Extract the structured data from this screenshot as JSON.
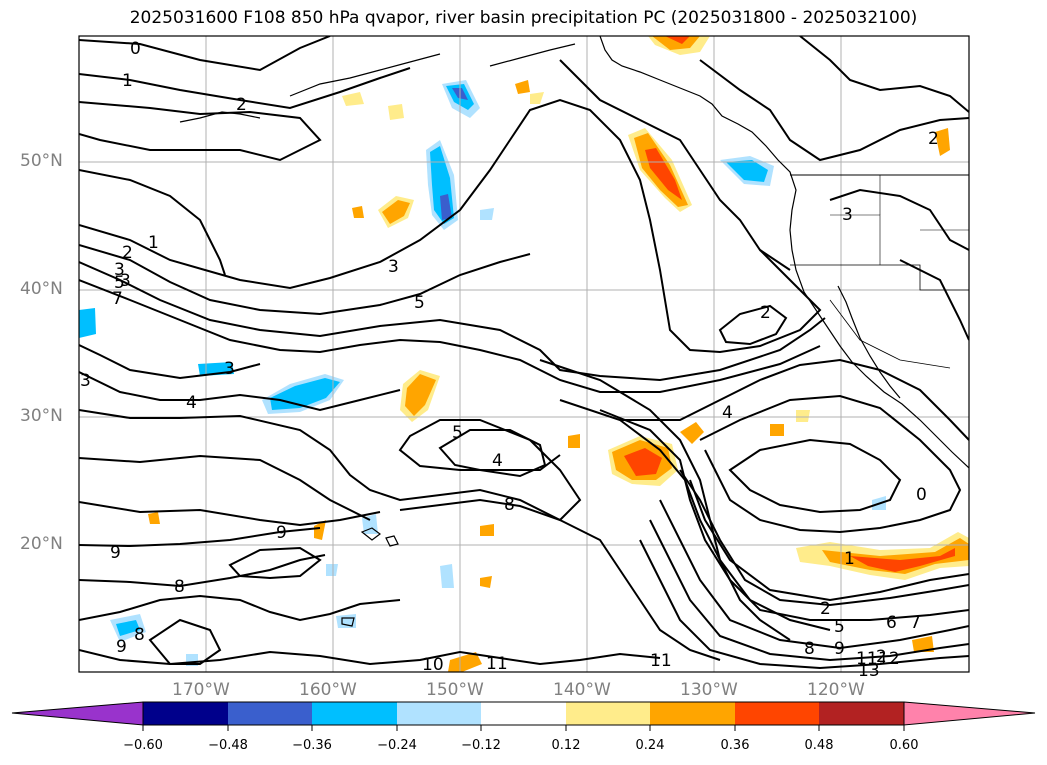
{
  "title": "2025031600 F108 850 hPa qvapor, river basin precipitation PC (2025031800 - 2025032100)",
  "lat_labels": [
    "50°N",
    "40°N",
    "30°N",
    "20°N"
  ],
  "lon_labels": [
    "170°W",
    "160°W",
    "150°W",
    "140°W",
    "130°W",
    "120°W"
  ],
  "colorbar": {
    "ticks": [
      "−0.60",
      "−0.48",
      "−0.36",
      "−0.24",
      "−0.12",
      "0.12",
      "0.24",
      "0.36",
      "0.48",
      "0.60"
    ],
    "colors": [
      "#9933cc",
      "#00008b",
      "#3a5fcd",
      "#00bfff",
      "#b0e2ff",
      "#ffffff",
      "#ffec8b",
      "#ffa500",
      "#ff4500",
      "#b22222",
      "#ff82ab"
    ]
  },
  "contour_labels": [
    "0",
    "1",
    "2",
    "1",
    "2",
    "3",
    "5",
    "7",
    "3",
    "3",
    "5",
    "4",
    "5",
    "4",
    "8",
    "9",
    "9",
    "8",
    "8",
    "9",
    "10",
    "11",
    "11",
    "2",
    "4",
    "3",
    "2",
    "0",
    "1",
    "2",
    "5",
    "6",
    "7",
    "8",
    "9",
    "11",
    "12",
    "13",
    "3",
    "2",
    "3"
  ]
}
